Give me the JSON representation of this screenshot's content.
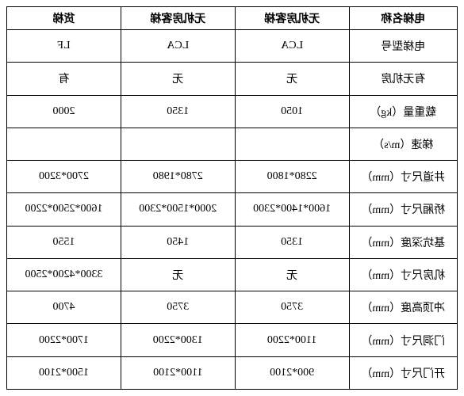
{
  "table": {
    "type": "table",
    "columns": [
      {
        "label": "电梯名称",
        "width": "24%",
        "align": "center"
      },
      {
        "label": "无机房客梯",
        "width": "25.3%",
        "align": "center"
      },
      {
        "label": "无机房客梯",
        "width": "25.3%",
        "align": "center"
      },
      {
        "label": "货梯",
        "width": "25.3%",
        "align": "center"
      }
    ],
    "rows": [
      {
        "label": "电梯型号",
        "c1": "LCA",
        "c2": "LCA",
        "c3": "LF"
      },
      {
        "label": "有无机房",
        "c1": "无",
        "c2": "无",
        "c3": "有"
      },
      {
        "label": "载重量（kg）",
        "c1": "1050",
        "c2": "1350",
        "c3": "2000"
      },
      {
        "label": "梯速（m/s）",
        "c1": "",
        "c2": "",
        "c3": ""
      },
      {
        "label": "井道尺寸（mm）",
        "c1": "2280*1800",
        "c2": "2780*1980",
        "c3": "2700*3200"
      },
      {
        "label": "桥厢尺寸（mm）",
        "c1": "1600*1400*2300",
        "c2": "2000*1500*2300",
        "c3": "1600*2500*2200"
      },
      {
        "label": "基坑深度（mm）",
        "c1": "1350",
        "c2": "1450",
        "c3": "1550"
      },
      {
        "label": "机房尺寸（mm）",
        "c1": "无",
        "c2": "无",
        "c3": "3300*4200*2500"
      },
      {
        "label": "冲顶高度（mm）",
        "c1": "3750",
        "c2": "3750",
        "c3": "4700"
      },
      {
        "label": "门洞尺寸（mm）",
        "c1": "1100*2200",
        "c2": "1300*2200",
        "c3": "1700*2200"
      },
      {
        "label": "开门尺寸（mm）",
        "c1": "900*2100",
        "c2": "1100*2100",
        "c3": "1500*2100"
      }
    ],
    "border_color": "#000000",
    "background_color": "#ffffff",
    "text_color": "#000000",
    "header_fontsize": 14,
    "cell_fontsize": 14,
    "header_fontweight": "bold"
  }
}
